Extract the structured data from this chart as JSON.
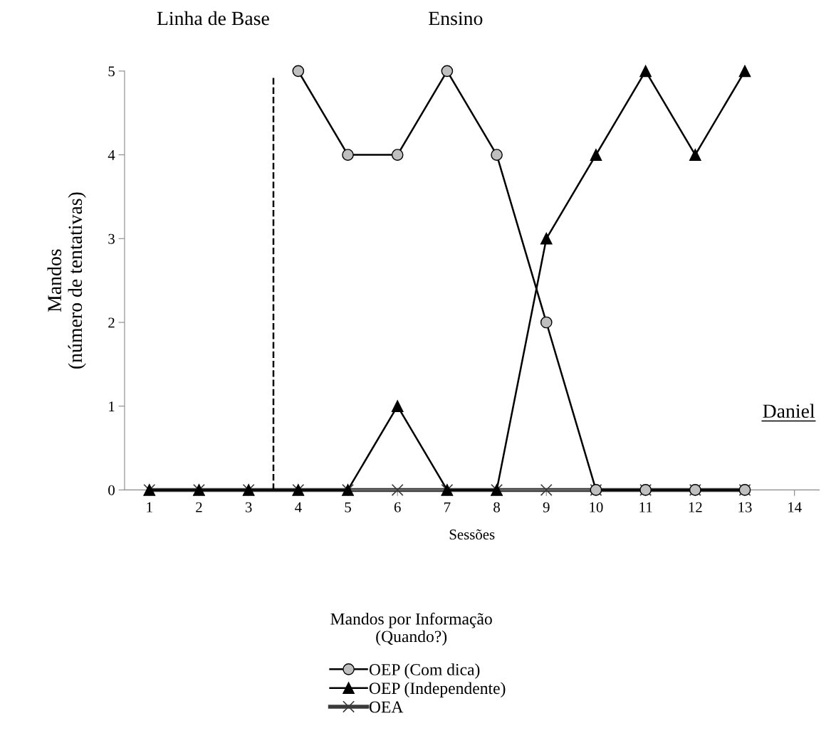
{
  "chart_data": {
    "type": "line",
    "ylabel": "Mandos\n(número de tentativas)",
    "xlabel": "Sessões",
    "legend_title": "Mandos por Informação\n(Quando?)",
    "x": [
      1,
      2,
      3,
      4,
      5,
      6,
      7,
      8,
      9,
      10,
      11,
      12,
      13
    ],
    "xlim": [
      0.5,
      14.5
    ],
    "xticks": [
      1,
      2,
      3,
      4,
      5,
      6,
      7,
      8,
      9,
      10,
      11,
      12,
      13,
      14
    ],
    "ylim": [
      0,
      5
    ],
    "yticks": [
      0,
      1,
      2,
      3,
      4,
      5
    ],
    "series": [
      {
        "name": "OEP (Com dica)",
        "color": "#000000",
        "marker": "circle",
        "values": [
          null,
          null,
          null,
          5,
          4,
          4,
          5,
          4,
          2,
          0,
          0,
          0,
          0
        ]
      },
      {
        "name": "OEP (Independente)",
        "color": "#000000",
        "marker": "triangle",
        "values": [
          0,
          0,
          0,
          0,
          0,
          1,
          0,
          0,
          3,
          4,
          5,
          4,
          5
        ]
      },
      {
        "name": "OEA",
        "color": "#3a3a3a",
        "marker": "cross",
        "values": [
          0,
          0,
          0,
          0,
          0,
          0,
          0,
          0,
          0,
          0,
          0,
          0,
          0
        ]
      }
    ],
    "ref_lines": [
      {
        "axis": "x",
        "value": 3.5,
        "label": null,
        "color": "#000000",
        "line_style": "dashed"
      }
    ],
    "annotations": [
      "Linha de Base",
      "Ensino",
      "Daniel"
    ],
    "grid": false,
    "legend": "bottom"
  }
}
